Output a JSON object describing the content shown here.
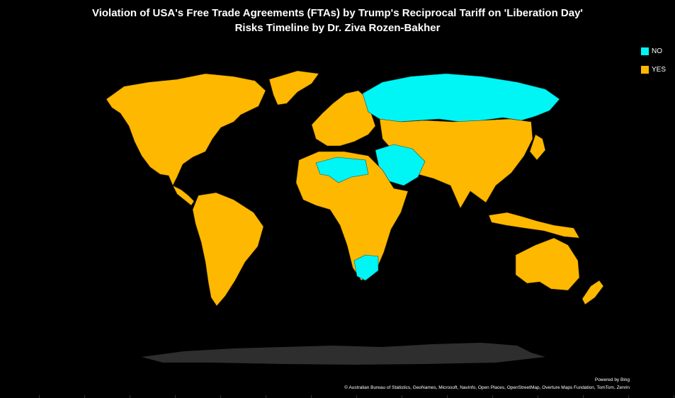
{
  "title": {
    "line1": "Violation of USA's Free Trade Agreements (FTAs) by Trump's Reciprocal Tariff on 'Liberation Day'",
    "line2": "Risks Timeline by Dr. Ziva Rozen-Bakher"
  },
  "legend": {
    "items": [
      {
        "label": "NO",
        "color": "#00F5F5"
      },
      {
        "label": "YES",
        "color": "#FFB800"
      }
    ]
  },
  "colors": {
    "background": "#000000",
    "no": "#00F5F5",
    "yes": "#FFB800",
    "antarctica": "#2E2E2E",
    "border": "#3a2a00"
  },
  "credits": {
    "powered": "Powered by Bing",
    "sources": "© Australian Bureau of Statistics, GeoNames, Microsoft, Navinfo, Open Places, OpenStreetMap, Overture Maps Fundation, TomTom, Zenrin"
  }
}
